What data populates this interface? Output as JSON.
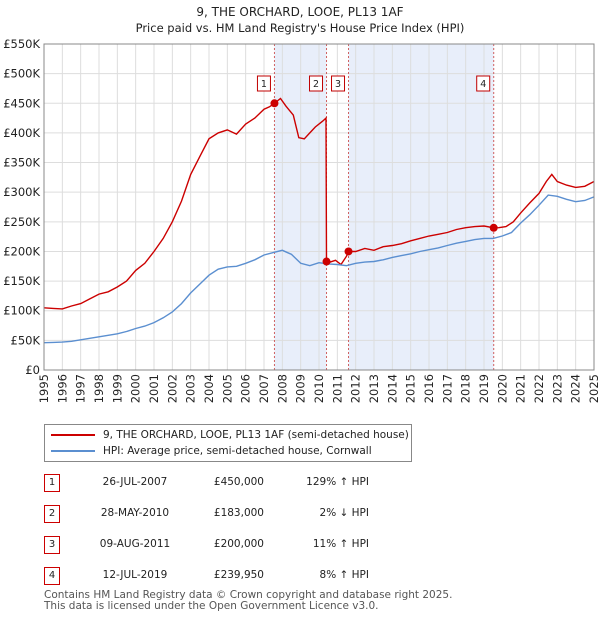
{
  "chart_data": {
    "type": "line",
    "title": "9, THE ORCHARD, LOOE, PL13 1AF",
    "subtitle": "Price paid vs. HM Land Registry's House Price Index (HPI)",
    "xlim": [
      1995,
      2025
    ],
    "ylim": [
      0,
      550000
    ],
    "y_ticks": [
      0,
      50000,
      100000,
      150000,
      200000,
      250000,
      300000,
      350000,
      400000,
      450000,
      500000,
      550000
    ],
    "y_tick_labels": [
      "£0",
      "£50K",
      "£100K",
      "£150K",
      "£200K",
      "£250K",
      "£300K",
      "£350K",
      "£400K",
      "£450K",
      "£500K",
      "£550K"
    ],
    "x_ticks": [
      1995,
      1996,
      1997,
      1998,
      1999,
      2000,
      2001,
      2002,
      2003,
      2004,
      2005,
      2006,
      2007,
      2008,
      2009,
      2010,
      2011,
      2012,
      2013,
      2014,
      2015,
      2016,
      2017,
      2018,
      2019,
      2020,
      2021,
      2022,
      2023,
      2024,
      2025
    ],
    "x_tick_labels": [
      "1995",
      "1996",
      "1997",
      "1998",
      "1999",
      "2000",
      "2001",
      "2002",
      "2003",
      "2004",
      "2005",
      "2006",
      "2007",
      "2008",
      "2009",
      "2010",
      "2011",
      "2012",
      "2013",
      "2014",
      "2015",
      "2016",
      "2017",
      "2018",
      "2019",
      "2020",
      "2021",
      "2022",
      "2023",
      "2024",
      "2025"
    ],
    "grid": true,
    "shaded_periods": [
      [
        2007.57,
        2010.41
      ],
      [
        2011.61,
        2019.53
      ]
    ],
    "series": [
      {
        "name": "9, THE ORCHARD, LOOE, PL13 1AF (semi-detached house)",
        "color": "#cc0000",
        "x": [
          1995,
          1995.5,
          1996,
          1996.5,
          1997,
          1997.5,
          1998,
          1998.5,
          1999,
          1999.5,
          2000,
          2000.5,
          2001,
          2001.5,
          2002,
          2002.5,
          2003,
          2003.5,
          2004,
          2004.5,
          2005,
          2005.5,
          2006,
          2006.5,
          2007,
          2007.3,
          2007.57,
          2007.9,
          2008.2,
          2008.6,
          2008.9,
          2009.2,
          2009.5,
          2009.8,
          2010.2,
          2010.38,
          2010.41,
          2010.6,
          2010.9,
          2011.2,
          2011.5,
          2011.61,
          2012,
          2012.5,
          2013,
          2013.5,
          2014,
          2014.5,
          2015,
          2015.5,
          2016,
          2016.5,
          2017,
          2017.5,
          2018,
          2018.5,
          2019,
          2019.53,
          2019.8,
          2020.2,
          2020.6,
          2021,
          2021.5,
          2022,
          2022.4,
          2022.7,
          2023,
          2023.5,
          2024,
          2024.5,
          2025
        ],
        "values": [
          105000,
          104000,
          103000,
          108000,
          112000,
          120000,
          128000,
          132000,
          140000,
          150000,
          168000,
          180000,
          200000,
          222000,
          250000,
          285000,
          330000,
          360000,
          390000,
          400000,
          405000,
          398000,
          415000,
          425000,
          440000,
          444000,
          450000,
          458000,
          445000,
          430000,
          392000,
          390000,
          400000,
          410000,
          420000,
          425000,
          183000,
          182000,
          185000,
          178000,
          192000,
          200000,
          200000,
          205000,
          202000,
          208000,
          210000,
          213000,
          218000,
          222000,
          226000,
          229000,
          232000,
          237000,
          240000,
          242000,
          243000,
          239950,
          240000,
          242000,
          250000,
          265000,
          282000,
          298000,
          318000,
          330000,
          318000,
          312000,
          308000,
          310000,
          318000
        ]
      },
      {
        "name": "HPI: Average price, semi-detached house, Cornwall",
        "color": "#5b8fd0",
        "x": [
          1995,
          1995.5,
          1996,
          1996.5,
          1997,
          1997.5,
          1998,
          1998.5,
          1999,
          1999.5,
          2000,
          2000.5,
          2001,
          2001.5,
          2002,
          2002.5,
          2003,
          2003.5,
          2004,
          2004.5,
          2005,
          2005.5,
          2006,
          2006.5,
          2007,
          2007.5,
          2008,
          2008.5,
          2009,
          2009.5,
          2010,
          2010.5,
          2011,
          2011.5,
          2012,
          2012.5,
          2013,
          2013.5,
          2014,
          2014.5,
          2015,
          2015.5,
          2016,
          2016.5,
          2017,
          2017.5,
          2018,
          2018.5,
          2019,
          2019.5,
          2020,
          2020.5,
          2021,
          2021.5,
          2022,
          2022.5,
          2023,
          2023.5,
          2024,
          2024.5,
          2025
        ],
        "values": [
          46000,
          46500,
          47000,
          48500,
          51000,
          53500,
          56000,
          58500,
          61000,
          65000,
          70000,
          74000,
          80000,
          88000,
          98000,
          112000,
          130000,
          145000,
          160000,
          170000,
          174000,
          175000,
          180000,
          186000,
          194000,
          198000,
          202000,
          195000,
          180000,
          176000,
          181000,
          179000,
          178000,
          176000,
          180000,
          182000,
          183000,
          186000,
          190000,
          193000,
          196000,
          200000,
          203000,
          206000,
          210000,
          214000,
          217000,
          220000,
          222000,
          222000,
          226000,
          232000,
          248000,
          262000,
          278000,
          295000,
          293000,
          288000,
          284000,
          286000,
          292000
        ]
      }
    ],
    "sale_points": [
      {
        "label": "1",
        "x": 2007.57,
        "y": 450000
      },
      {
        "label": "2",
        "x": 2010.41,
        "y": 183000
      },
      {
        "label": "3",
        "x": 2011.61,
        "y": 200000
      },
      {
        "label": "4",
        "x": 2019.53,
        "y": 239950
      }
    ]
  },
  "legend": {
    "property_label": "9, THE ORCHARD, LOOE, PL13 1AF (semi-detached house)",
    "hpi_label": "HPI: Average price, semi-detached house, Cornwall"
  },
  "sales": [
    {
      "num": "1",
      "date": "26-JUL-2007",
      "price": "£450,000",
      "hpi": "129% ↑ HPI"
    },
    {
      "num": "2",
      "date": "28-MAY-2010",
      "price": "£183,000",
      "hpi": "2% ↓ HPI"
    },
    {
      "num": "3",
      "date": "09-AUG-2011",
      "price": "£200,000",
      "hpi": "11% ↑ HPI"
    },
    {
      "num": "4",
      "date": "12-JUL-2019",
      "price": "£239,950",
      "hpi": "8% ↑ HPI"
    }
  ],
  "footer": {
    "line1": "Contains HM Land Registry data © Crown copyright and database right 2025.",
    "line2": "This data is licensed under the Open Government Licence v3.0."
  }
}
